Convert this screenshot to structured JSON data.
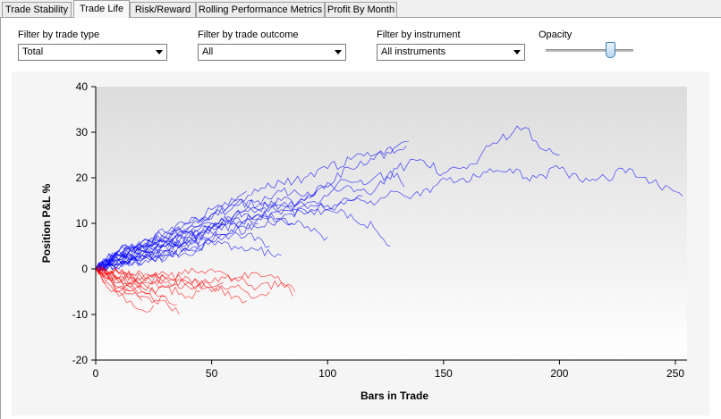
{
  "tabs": [
    {
      "label": "Trade Stability",
      "active": false
    },
    {
      "label": "Trade Life",
      "active": true
    },
    {
      "label": "Risk/Reward",
      "active": false
    },
    {
      "label": "Rolling Performance Metrics",
      "active": false
    },
    {
      "label": "Profit By Month",
      "active": false
    }
  ],
  "filters": {
    "trade_type": {
      "label": "Filter by trade type",
      "value": "Total"
    },
    "trade_outcome": {
      "label": "Filter by trade outcome",
      "value": "All"
    },
    "instrument": {
      "label": "Filter by instrument",
      "value": "All instruments"
    }
  },
  "opacity": {
    "label": "Opacity",
    "value": 0.73
  },
  "chart_data": {
    "type": "line",
    "xlabel": "Bars in Trade",
    "ylabel": "Position P&L %",
    "xlim": [
      0,
      255
    ],
    "ylim": [
      -20,
      40
    ],
    "xticks": [
      0,
      50,
      100,
      150,
      200,
      250
    ],
    "yticks": [
      -20,
      -10,
      0,
      10,
      20,
      30,
      40
    ],
    "grid": false,
    "colors": {
      "winning": "#0000ff",
      "losing": "#ff0000"
    },
    "series": [
      {
        "group": "winning",
        "x": [
          0,
          10,
          20,
          30,
          40,
          50,
          60,
          70,
          80,
          90,
          100,
          110,
          120,
          130,
          140,
          150,
          160,
          170,
          180,
          190,
          200,
          210,
          220,
          230,
          240,
          253
        ],
        "values": [
          0,
          3,
          5,
          6,
          7,
          9,
          12,
          13,
          14,
          12,
          14,
          15,
          14,
          17,
          16,
          20,
          19,
          22,
          21,
          20,
          22,
          19,
          20,
          22,
          19,
          16
        ]
      },
      {
        "group": "winning",
        "x": [
          0,
          10,
          20,
          30,
          40,
          50,
          60,
          70,
          80,
          90,
          100,
          110,
          120,
          130,
          140,
          150,
          160,
          170,
          180,
          185,
          190,
          200
        ],
        "values": [
          0,
          2,
          4,
          5,
          8,
          10,
          11,
          13,
          15,
          14,
          16,
          18,
          17,
          22,
          24,
          21,
          22,
          27,
          30,
          31,
          28,
          25
        ]
      },
      {
        "group": "winning",
        "x": [
          0,
          10,
          20,
          30,
          40,
          50,
          60,
          70,
          80,
          90,
          100,
          110,
          120,
          130,
          135
        ],
        "values": [
          0,
          4,
          6,
          7,
          9,
          12,
          15,
          14,
          17,
          16,
          19,
          22,
          24,
          27,
          28
        ]
      },
      {
        "group": "winning",
        "x": [
          0,
          10,
          20,
          30,
          40,
          50,
          60,
          70,
          80,
          90,
          100,
          110,
          120,
          130,
          134
        ],
        "values": [
          0,
          3,
          5,
          8,
          10,
          12,
          14,
          17,
          19,
          20,
          22,
          24,
          25,
          26,
          27
        ]
      },
      {
        "group": "winning",
        "x": [
          0,
          10,
          20,
          30,
          40,
          50,
          60,
          70,
          80,
          90,
          100,
          110,
          120,
          130,
          133
        ],
        "values": [
          0,
          2,
          4,
          6,
          8,
          9,
          12,
          11,
          14,
          15,
          18,
          19,
          20,
          21,
          18
        ]
      },
      {
        "group": "winning",
        "x": [
          0,
          10,
          20,
          30,
          40,
          50,
          60,
          70,
          80,
          90,
          100,
          110,
          120,
          127
        ],
        "values": [
          0,
          3,
          5,
          7,
          9,
          10,
          11,
          12,
          11,
          13,
          13,
          12,
          9,
          5
        ]
      },
      {
        "group": "winning",
        "x": [
          0,
          10,
          20,
          30,
          40,
          50,
          60,
          70,
          80,
          90,
          100,
          110,
          115
        ],
        "values": [
          0,
          4,
          5,
          6,
          8,
          11,
          14,
          15,
          13,
          14,
          13,
          15,
          16
        ]
      },
      {
        "group": "winning",
        "x": [
          0,
          10,
          20,
          30,
          40,
          50,
          60,
          70,
          80,
          90,
          95
        ],
        "values": [
          0,
          2,
          3,
          5,
          6,
          9,
          10,
          11,
          12,
          15,
          17
        ]
      },
      {
        "group": "winning",
        "x": [
          0,
          10,
          20,
          30,
          40,
          50,
          60,
          70,
          80,
          90,
          100
        ],
        "values": [
          0,
          3,
          5,
          6,
          6,
          8,
          10,
          9,
          11,
          9,
          7
        ]
      },
      {
        "group": "winning",
        "x": [
          0,
          10,
          20,
          30,
          40,
          50,
          60,
          70,
          80,
          85
        ],
        "values": [
          0,
          2,
          2,
          4,
          6,
          7,
          9,
          12,
          11,
          10
        ]
      },
      {
        "group": "winning",
        "x": [
          0,
          10,
          20,
          30,
          40,
          50,
          60,
          70,
          75
        ],
        "values": [
          0,
          1,
          3,
          5,
          4,
          6,
          8,
          7,
          5
        ]
      },
      {
        "group": "winning",
        "x": [
          0,
          10,
          20,
          30,
          40,
          50,
          60,
          70,
          80
        ],
        "values": [
          0,
          2,
          4,
          3,
          5,
          6,
          5,
          4,
          3
        ]
      },
      {
        "group": "winning",
        "x": [
          0,
          10,
          20,
          30,
          40,
          50,
          60,
          65
        ],
        "values": [
          0,
          3,
          6,
          8,
          10,
          13,
          15,
          17
        ]
      },
      {
        "group": "winning",
        "x": [
          0,
          10,
          20,
          30,
          40,
          50,
          55
        ],
        "values": [
          0,
          1,
          3,
          4,
          7,
          9,
          10
        ]
      },
      {
        "group": "winning",
        "x": [
          0,
          10,
          20,
          30,
          40,
          50,
          60,
          70
        ],
        "values": [
          0,
          2,
          1,
          3,
          4,
          6,
          8,
          10
        ]
      },
      {
        "group": "winning",
        "x": [
          0,
          10,
          20,
          30,
          40,
          45
        ],
        "values": [
          0,
          1,
          2,
          4,
          3,
          4
        ]
      },
      {
        "group": "winning",
        "x": [
          0,
          10,
          20,
          30,
          40,
          50
        ],
        "values": [
          0,
          4,
          5,
          7,
          8,
          6
        ]
      },
      {
        "group": "winning",
        "x": [
          0,
          10,
          20,
          30,
          35
        ],
        "values": [
          0,
          2,
          3,
          2,
          4
        ]
      },
      {
        "group": "winning",
        "x": [
          0,
          10,
          20,
          30,
          40
        ],
        "values": [
          0,
          1,
          4,
          6,
          5
        ]
      },
      {
        "group": "winning",
        "x": [
          0,
          5,
          10,
          15,
          20,
          25
        ],
        "values": [
          0,
          2,
          1,
          3,
          2,
          3
        ]
      },
      {
        "group": "winning",
        "x": [
          0,
          5,
          10,
          15,
          20,
          25,
          30
        ],
        "values": [
          0,
          1,
          3,
          2,
          5,
          4,
          6
        ]
      },
      {
        "group": "winning",
        "x": [
          0,
          5,
          10,
          15,
          20
        ],
        "values": [
          0,
          1,
          0,
          2,
          1
        ]
      },
      {
        "group": "winning",
        "x": [
          0,
          5,
          10,
          15
        ],
        "values": [
          0,
          2,
          4,
          3
        ]
      },
      {
        "group": "losing",
        "x": [
          0,
          10,
          20,
          30,
          40,
          50,
          60,
          70,
          80,
          86
        ],
        "values": [
          0,
          -1,
          -2,
          -2,
          -1,
          0,
          -2,
          -4,
          -3,
          -5
        ]
      },
      {
        "group": "losing",
        "x": [
          0,
          10,
          20,
          30,
          40,
          50,
          60,
          70,
          80,
          85
        ],
        "values": [
          0,
          -2,
          -3,
          -2,
          -4,
          -3,
          -2,
          -1,
          -3,
          -6
        ]
      },
      {
        "group": "losing",
        "x": [
          0,
          10,
          20,
          30,
          40,
          50,
          60,
          70,
          75
        ],
        "values": [
          0,
          -1,
          -3,
          -4,
          -3,
          -5,
          -4,
          -6,
          -5
        ]
      },
      {
        "group": "losing",
        "x": [
          0,
          10,
          20,
          30,
          40,
          50,
          60,
          65
        ],
        "values": [
          0,
          -2,
          -1,
          -3,
          -2,
          -4,
          -6,
          -7
        ]
      },
      {
        "group": "losing",
        "x": [
          0,
          10,
          20,
          30,
          40,
          50,
          55
        ],
        "values": [
          0,
          -1,
          -2,
          -1,
          -3,
          -4,
          -3
        ]
      },
      {
        "group": "losing",
        "x": [
          0,
          10,
          20,
          30,
          36
        ],
        "values": [
          0,
          -4,
          -6,
          -7,
          -10
        ]
      },
      {
        "group": "losing",
        "x": [
          0,
          10,
          20,
          30,
          40,
          45
        ],
        "values": [
          0,
          -3,
          -5,
          -4,
          -6,
          -5
        ]
      },
      {
        "group": "losing",
        "x": [
          0,
          5,
          10,
          15,
          20,
          25
        ],
        "values": [
          0,
          -3,
          -5,
          -7,
          -9,
          -8
        ]
      },
      {
        "group": "losing",
        "x": [
          0,
          5,
          10,
          15,
          20
        ],
        "values": [
          0,
          -2,
          -5,
          -4,
          -7
        ]
      },
      {
        "group": "losing",
        "x": [
          0,
          5,
          10,
          15,
          20,
          25,
          30
        ],
        "values": [
          0,
          -1,
          -2,
          -4,
          -3,
          -5,
          -6
        ]
      },
      {
        "group": "losing",
        "x": [
          0,
          5,
          10,
          15
        ],
        "values": [
          0,
          -4,
          -6,
          -5
        ]
      },
      {
        "group": "losing",
        "x": [
          0,
          5,
          10,
          15,
          20,
          25,
          30,
          35
        ],
        "values": [
          0,
          -2,
          -4,
          -3,
          -5,
          -7,
          -6,
          -8
        ]
      },
      {
        "group": "losing",
        "x": [
          0,
          5,
          10,
          15,
          20,
          25,
          30
        ],
        "values": [
          0,
          -1,
          -3,
          -2,
          -4,
          -3,
          -2
        ]
      },
      {
        "group": "losing",
        "x": [
          0,
          5,
          10,
          15,
          20
        ],
        "values": [
          0,
          -1,
          -2,
          -3,
          -4
        ]
      }
    ]
  }
}
